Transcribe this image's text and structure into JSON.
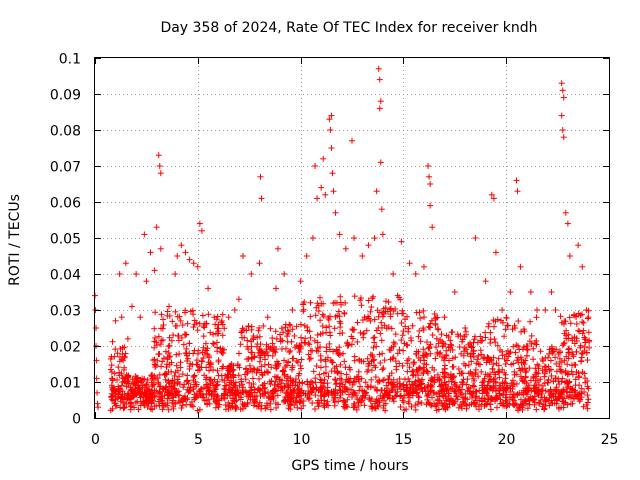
{
  "chart_data": {
    "type": "scatter",
    "title": "Day 358 of 2024, Rate Of TEC Index for receiver kndh",
    "xlabel": "GPS time / hours",
    "ylabel": "ROTI / TECUs",
    "xlim": [
      0,
      25
    ],
    "ylim": [
      0,
      0.1
    ],
    "xticks": [
      "0",
      "5",
      "10",
      "15",
      "20",
      "25"
    ],
    "yticks": [
      "0",
      "0.01",
      "0.02",
      "0.03",
      "0.04",
      "0.05",
      "0.06",
      "0.07",
      "0.08",
      "0.09",
      "0.1"
    ],
    "grid": true,
    "legend": "none",
    "marker": "+",
    "colors": {
      "series": "#ff0000",
      "grid": "#a0a0a0"
    },
    "series": [
      {
        "points": [
          [
            0.0,
            0.034
          ],
          [
            0.02,
            0.03
          ],
          [
            0.05,
            0.025
          ],
          [
            0.05,
            0.02
          ],
          [
            0.07,
            0.016
          ],
          [
            0.08,
            0.011
          ],
          [
            0.1,
            0.007
          ],
          [
            0.12,
            0.004
          ],
          [
            0.15,
            0.003
          ],
          [
            0.8,
            0.017
          ],
          [
            1.0,
            0.027
          ],
          [
            1.1,
            0.018
          ],
          [
            1.2,
            0.04
          ],
          [
            1.3,
            0.028
          ],
          [
            1.5,
            0.043
          ],
          [
            1.6,
            0.022
          ],
          [
            1.8,
            0.031
          ],
          [
            2.0,
            0.04
          ],
          [
            2.2,
            0.028
          ],
          [
            2.4,
            0.051
          ],
          [
            2.5,
            0.038
          ],
          [
            2.7,
            0.046
          ],
          [
            2.9,
            0.041
          ],
          [
            3.0,
            0.053
          ],
          [
            3.1,
            0.073
          ],
          [
            3.15,
            0.07
          ],
          [
            3.2,
            0.068
          ],
          [
            3.2,
            0.047
          ],
          [
            3.6,
            0.031
          ],
          [
            3.9,
            0.04
          ],
          [
            4.0,
            0.045
          ],
          [
            4.2,
            0.048
          ],
          [
            4.4,
            0.046
          ],
          [
            4.6,
            0.044
          ],
          [
            4.8,
            0.043
          ],
          [
            5.0,
            0.042
          ],
          [
            5.1,
            0.054
          ],
          [
            5.2,
            0.052
          ],
          [
            5.5,
            0.036
          ],
          [
            5.8,
            0.028
          ],
          [
            6.2,
            0.018
          ],
          [
            6.5,
            0.028
          ],
          [
            6.8,
            0.03
          ],
          [
            7.0,
            0.033
          ],
          [
            7.2,
            0.045
          ],
          [
            7.6,
            0.04
          ],
          [
            8.0,
            0.043
          ],
          [
            8.05,
            0.067
          ],
          [
            8.1,
            0.061
          ],
          [
            8.4,
            0.028
          ],
          [
            8.8,
            0.036
          ],
          [
            8.9,
            0.047
          ],
          [
            9.2,
            0.04
          ],
          [
            9.6,
            0.03
          ],
          [
            10.0,
            0.038
          ],
          [
            10.3,
            0.045
          ],
          [
            10.6,
            0.05
          ],
          [
            10.7,
            0.07
          ],
          [
            10.8,
            0.061
          ],
          [
            11.0,
            0.064
          ],
          [
            11.1,
            0.072
          ],
          [
            11.2,
            0.062
          ],
          [
            11.4,
            0.083
          ],
          [
            11.5,
            0.084
          ],
          [
            11.45,
            0.08
          ],
          [
            11.5,
            0.075
          ],
          [
            11.55,
            0.068
          ],
          [
            11.6,
            0.063
          ],
          [
            11.7,
            0.057
          ],
          [
            11.9,
            0.051
          ],
          [
            12.2,
            0.047
          ],
          [
            12.5,
            0.077
          ],
          [
            12.6,
            0.05
          ],
          [
            13.0,
            0.045
          ],
          [
            13.3,
            0.048
          ],
          [
            13.6,
            0.05
          ],
          [
            13.7,
            0.063
          ],
          [
            13.8,
            0.097
          ],
          [
            13.85,
            0.094
          ],
          [
            13.9,
            0.088
          ],
          [
            13.85,
            0.086
          ],
          [
            13.9,
            0.071
          ],
          [
            13.95,
            0.058
          ],
          [
            14.0,
            0.051
          ],
          [
            14.5,
            0.04
          ],
          [
            14.9,
            0.049
          ],
          [
            15.3,
            0.043
          ],
          [
            15.6,
            0.04
          ],
          [
            16.0,
            0.042
          ],
          [
            16.2,
            0.07
          ],
          [
            16.25,
            0.067
          ],
          [
            16.3,
            0.065
          ],
          [
            16.3,
            0.059
          ],
          [
            16.4,
            0.053
          ],
          [
            17.0,
            0.028
          ],
          [
            17.5,
            0.035
          ],
          [
            18.0,
            0.025
          ],
          [
            18.5,
            0.05
          ],
          [
            19.0,
            0.038
          ],
          [
            19.3,
            0.062
          ],
          [
            19.4,
            0.061
          ],
          [
            19.5,
            0.046
          ],
          [
            19.8,
            0.03
          ],
          [
            20.2,
            0.035
          ],
          [
            20.5,
            0.066
          ],
          [
            20.55,
            0.063
          ],
          [
            20.7,
            0.042
          ],
          [
            21.2,
            0.035
          ],
          [
            21.5,
            0.03
          ],
          [
            21.9,
            0.03
          ],
          [
            22.2,
            0.035
          ],
          [
            22.4,
            0.03
          ],
          [
            22.7,
            0.093
          ],
          [
            22.75,
            0.091
          ],
          [
            22.8,
            0.089
          ],
          [
            22.7,
            0.084
          ],
          [
            22.75,
            0.08
          ],
          [
            22.8,
            0.078
          ],
          [
            22.9,
            0.057
          ],
          [
            23.0,
            0.054
          ],
          [
            23.1,
            0.045
          ],
          [
            23.5,
            0.048
          ],
          [
            23.7,
            0.042
          ],
          [
            23.9,
            0.03
          ],
          [
            24.0,
            0.028
          ]
        ]
      }
    ]
  }
}
